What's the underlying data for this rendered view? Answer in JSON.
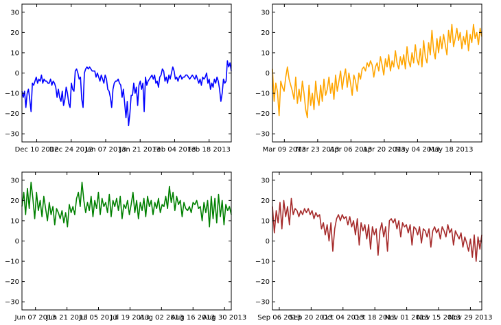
{
  "figure": {
    "background": "#ffffff"
  },
  "chart_data": [
    {
      "type": "line",
      "title": "",
      "xlabel": "",
      "ylabel": "",
      "color": "#0000ff",
      "ylim": [
        -34,
        34
      ],
      "yticks": [
        "−30",
        "−20",
        "−10",
        "0",
        "10",
        "20",
        "30"
      ],
      "xticks": [
        "Dec 10 2012",
        "Dec 24 2012",
        "Jan 07 2013",
        "Jan 21 2013",
        "Feb 04 2013",
        "Feb 18 2013"
      ],
      "x_start": "2012-12-04",
      "x_end": "2013-02-27",
      "series": [
        {
          "values": [
            -9,
            -12,
            -9,
            -17,
            -10,
            -8,
            -13,
            -19,
            -5,
            -6,
            -4,
            -2,
            -5,
            -3,
            -4,
            -1,
            -5,
            -3,
            -4,
            -4,
            -5,
            -5,
            -3,
            -6,
            -4,
            -5,
            -7,
            -12,
            -8,
            -12,
            -14,
            -9,
            -16,
            -13,
            -7,
            -10,
            -15,
            -17,
            -5,
            -8,
            -9,
            1,
            2,
            0,
            -3,
            -2,
            -13,
            -17,
            0,
            2,
            3,
            2,
            3,
            2,
            1,
            1,
            1,
            -2,
            0,
            -2,
            -4,
            -1,
            -3,
            -5,
            -1,
            -3,
            -8,
            -9,
            -12,
            -17,
            -8,
            -5,
            -4,
            -4,
            -3,
            -5,
            -6,
            -12,
            -8,
            -15,
            -22,
            -14,
            -26,
            -20,
            -11,
            -11,
            -5,
            -10,
            -7,
            -16,
            -6,
            -4,
            -8,
            -5,
            -19,
            -2,
            -6,
            -4,
            -3,
            -2,
            -1,
            -3,
            -1,
            -5,
            -4,
            -7,
            -2,
            -1,
            2,
            1,
            -4,
            -2,
            -5,
            -1,
            -3,
            0,
            3,
            1,
            -3,
            -2,
            -4,
            -2,
            -1,
            -3,
            -2,
            -2,
            -1,
            -1,
            -2,
            -3,
            -2,
            -1,
            -2,
            -3,
            -1,
            -3,
            -5,
            -3,
            -6,
            -2,
            -3,
            -2,
            0,
            -5,
            -3,
            -8,
            -5,
            -7,
            -3,
            -5,
            -2,
            -4,
            -8,
            -14,
            -10,
            -3,
            -5,
            -4,
            6,
            3,
            5,
            1
          ]
        }
      ]
    },
    {
      "type": "line",
      "title": "",
      "xlabel": "",
      "ylabel": "",
      "color": "#ffa500",
      "ylim": [
        -34,
        34
      ],
      "yticks": [
        "−30",
        "−20",
        "−10",
        "0",
        "10",
        "20",
        "30"
      ],
      "xticks": [
        "Mar 09 2013",
        "Mar 23 2013",
        "Apr 06 2013",
        "Apr 20 2013",
        "May 04 2013",
        "May 18 2013"
      ],
      "x_start": "2013-03-04",
      "x_end": "2013-05-31",
      "series": [
        {
          "values": [
            2,
            -14,
            -5,
            -9,
            -21,
            -4,
            -7,
            -9,
            -2,
            3,
            -3,
            -6,
            -9,
            -13,
            -2,
            -15,
            -8,
            -14,
            -4,
            -10,
            -18,
            -22,
            -6,
            -16,
            -10,
            -18,
            -4,
            -12,
            -16,
            -6,
            -14,
            -3,
            -11,
            -8,
            -2,
            -10,
            -5,
            -13,
            -1,
            -9,
            -4,
            1,
            -8,
            -2,
            2,
            -7,
            0,
            -5,
            -11,
            -1,
            -4,
            -9,
            0,
            -3,
            2,
            3,
            1,
            5,
            3,
            6,
            4,
            -2,
            3,
            5,
            1,
            8,
            4,
            -1,
            7,
            3,
            9,
            1,
            6,
            3,
            11,
            5,
            2,
            8,
            4,
            9,
            2,
            13,
            6,
            3,
            10,
            5,
            14,
            7,
            4,
            12,
            3,
            16,
            8,
            5,
            15,
            9,
            21,
            11,
            7,
            17,
            10,
            18,
            12,
            19,
            14,
            9,
            21,
            15,
            24,
            13,
            17,
            22,
            16,
            20,
            12,
            18,
            14,
            21,
            11,
            19,
            15,
            24,
            17,
            20,
            14,
            22,
            18
          ]
        }
      ]
    },
    {
      "type": "line",
      "title": "",
      "xlabel": "",
      "ylabel": "",
      "color": "#008000",
      "ylim": [
        -34,
        34
      ],
      "yticks": [
        "−30",
        "−20",
        "−10",
        "0",
        "10",
        "20",
        "30"
      ],
      "xticks": [
        "Jun 07 2013",
        "Jun 21 2013",
        "Jul 05 2013",
        "Jul 19 2013",
        "Aug 02 2013",
        "Aug 16 2013",
        "Aug 30 2013"
      ],
      "x_start": "2013-06-01",
      "x_end": "2013-09-02",
      "series": [
        {
          "values": [
            17,
            24,
            13,
            26,
            16,
            29,
            21,
            11,
            24,
            15,
            20,
            12,
            22,
            16,
            10,
            19,
            13,
            17,
            8,
            16,
            14,
            11,
            15,
            9,
            14,
            7,
            18,
            14,
            17,
            13,
            21,
            24,
            17,
            29,
            20,
            14,
            19,
            15,
            22,
            12,
            20,
            16,
            24,
            13,
            21,
            17,
            19,
            14,
            23,
            12,
            20,
            17,
            21,
            15,
            22,
            11,
            18,
            16,
            20,
            13,
            18,
            24,
            14,
            20,
            11,
            19,
            15,
            21,
            12,
            22,
            17,
            20,
            13,
            19,
            16,
            21,
            14,
            18,
            17,
            22,
            16,
            27,
            19,
            24,
            15,
            22,
            18,
            20,
            12,
            19,
            16,
            15,
            17,
            14,
            19,
            18,
            20,
            16,
            17,
            10,
            19,
            14,
            20,
            7,
            22,
            11,
            21,
            9,
            23,
            12,
            20,
            8,
            18,
            15,
            17,
            13
          ]
        }
      ]
    },
    {
      "type": "line",
      "title": "",
      "xlabel": "",
      "ylabel": "",
      "color": "#a52a2a",
      "ylim": [
        -34,
        34
      ],
      "yticks": [
        "−30",
        "−20",
        "−10",
        "0",
        "10",
        "20",
        "30"
      ],
      "xticks": [
        "Sep 06 2013",
        "Sep 20 2013",
        "Oct 04 2013",
        "Oct 18 2013",
        "Nov 01 2013",
        "Nov 15 2013",
        "Nov 29 2013"
      ],
      "x_start": "2013-09-03",
      "x_end": "2013-12-04",
      "series": [
        {
          "values": [
            17,
            4,
            15,
            9,
            19,
            6,
            20,
            12,
            17,
            8,
            21,
            13,
            16,
            15,
            12,
            15,
            13,
            16,
            14,
            16,
            13,
            15,
            11,
            14,
            12,
            13,
            6,
            9,
            3,
            8,
            0,
            9,
            -5,
            6,
            11,
            13,
            10,
            13,
            11,
            12,
            8,
            12,
            7,
            10,
            3,
            11,
            -2,
            9,
            5,
            8,
            1,
            8,
            -4,
            7,
            3,
            6,
            -7,
            5,
            9,
            2,
            7,
            -5,
            10,
            11,
            9,
            11,
            6,
            10,
            2,
            9,
            7,
            8,
            4,
            8,
            -2,
            7,
            6,
            3,
            7,
            -1,
            6,
            5,
            2,
            6,
            -3,
            5,
            7,
            4,
            6,
            1,
            7,
            5,
            2,
            8,
            4,
            6,
            -2,
            5,
            3,
            1,
            4,
            -3,
            2,
            -1,
            -5,
            1,
            -8,
            3,
            -10,
            2,
            -4,
            3
          ]
        }
      ]
    }
  ]
}
